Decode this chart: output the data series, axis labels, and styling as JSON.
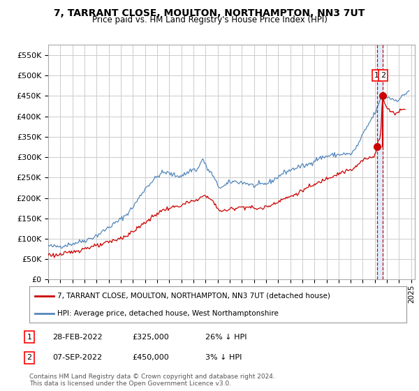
{
  "title": "7, TARRANT CLOSE, MOULTON, NORTHAMPTON, NN3 7UT",
  "subtitle": "Price paid vs. HM Land Registry's House Price Index (HPI)",
  "ylabel_ticks": [
    "£0",
    "£50K",
    "£100K",
    "£150K",
    "£200K",
    "£250K",
    "£300K",
    "£350K",
    "£400K",
    "£450K",
    "£500K",
    "£550K"
  ],
  "ytick_vals": [
    0,
    50000,
    100000,
    150000,
    200000,
    250000,
    300000,
    350000,
    400000,
    450000,
    500000,
    550000
  ],
  "ylim": [
    0,
    575000
  ],
  "xlim_start": 1995.0,
  "xlim_end": 2025.3,
  "legend_line1": "7, TARRANT CLOSE, MOULTON, NORTHAMPTON, NN3 7UT (detached house)",
  "legend_line2": "HPI: Average price, detached house, West Northamptonshire",
  "annotation1_label": "1",
  "annotation1_date": "28-FEB-2022",
  "annotation1_price": "£325,000",
  "annotation1_hpi": "26% ↓ HPI",
  "annotation2_label": "2",
  "annotation2_date": "07-SEP-2022",
  "annotation2_price": "£450,000",
  "annotation2_hpi": "3% ↓ HPI",
  "footer": "Contains HM Land Registry data © Crown copyright and database right 2024.\nThis data is licensed under the Open Government Licence v3.0.",
  "red_color": "#cc0000",
  "blue_color": "#5588bb",
  "shade_color": "#ddeeff",
  "grid_color": "#cccccc",
  "bg_color": "#ffffff",
  "sale1_x": 2022.16,
  "sale1_y": 325000,
  "sale2_x": 2022.67,
  "sale2_y": 450000
}
